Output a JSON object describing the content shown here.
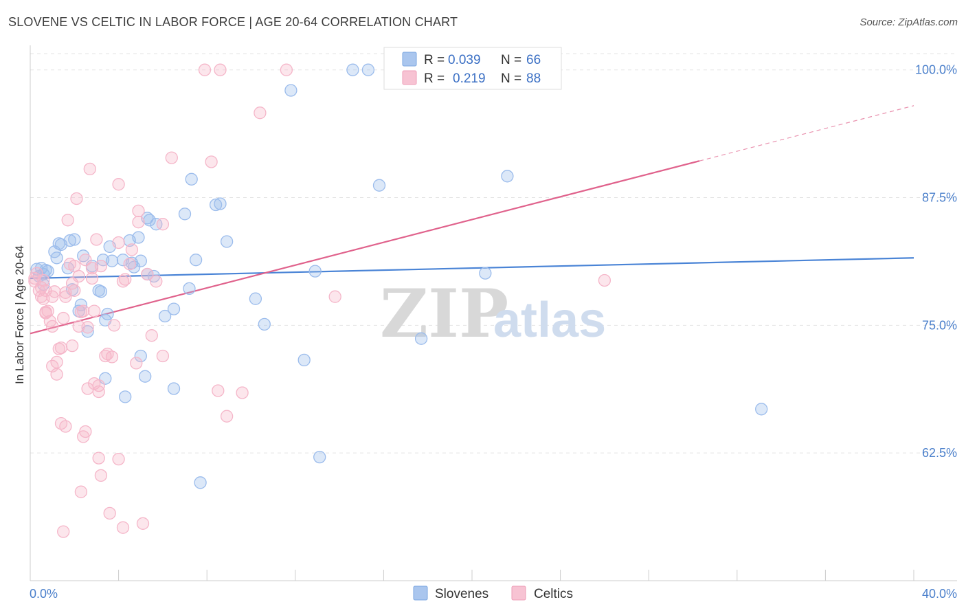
{
  "title": "SLOVENE VS CELTIC IN LABOR FORCE | AGE 20-64 CORRELATION CHART",
  "source": "Source: ZipAtlas.com",
  "watermark": {
    "zip": "ZIP",
    "atlas": "atlas"
  },
  "legend": {
    "r_label": "R =",
    "n_label": "N =",
    "series": [
      {
        "name": "Slovenes",
        "r": "0.039",
        "n": "66",
        "color": "#8fb4e8"
      },
      {
        "name": "Celtics",
        "r": "0.219",
        "n": "88",
        "color": "#f2a9c0"
      }
    ]
  },
  "bottom_legend": [
    "Slovenes",
    "Celtics"
  ],
  "chart_data": {
    "type": "scatter",
    "title": "SLOVENE VS CELTIC IN LABOR FORCE | AGE 20-64 CORRELATION CHART",
    "xlabel": "",
    "ylabel": "In Labor Force | Age 20-64",
    "xlim": [
      0,
      40
    ],
    "ylim": [
      50,
      102
    ],
    "x_tick_labels": [
      "0.0%",
      "40.0%"
    ],
    "y_ticks": [
      62.5,
      75.0,
      87.5,
      100.0
    ],
    "y_tick_labels": [
      "62.5%",
      "75.0%",
      "87.5%",
      "100.0%"
    ],
    "grid": true,
    "series": [
      {
        "name": "Slovenes",
        "color": "#4a84d6",
        "fill": "#9bbcec",
        "trend": {
          "x0": 0,
          "y0": 79.6,
          "x1": 40,
          "y1": 81.6,
          "dashed_from": null
        },
        "points": [
          [
            0.3,
            80.5
          ],
          [
            0.5,
            80.6
          ],
          [
            0.4,
            79.8
          ],
          [
            0.6,
            80.0
          ],
          [
            0.7,
            80.4
          ],
          [
            0.8,
            80.3
          ],
          [
            0.6,
            79.0
          ],
          [
            1.1,
            82.2
          ],
          [
            1.3,
            83.0
          ],
          [
            1.2,
            81.6
          ],
          [
            1.4,
            82.9
          ],
          [
            1.8,
            83.3
          ],
          [
            1.7,
            80.6
          ],
          [
            1.9,
            78.5
          ],
          [
            2.4,
            81.8
          ],
          [
            2.3,
            77.0
          ],
          [
            2.2,
            76.4
          ],
          [
            2.6,
            74.4
          ],
          [
            2.8,
            80.8
          ],
          [
            3.1,
            78.4
          ],
          [
            3.2,
            78.3
          ],
          [
            3.3,
            81.4
          ],
          [
            3.6,
            82.7
          ],
          [
            3.4,
            75.5
          ],
          [
            3.5,
            76.1
          ],
          [
            3.4,
            69.8
          ],
          [
            4.2,
            81.4
          ],
          [
            4.5,
            83.3
          ],
          [
            4.6,
            81.1
          ],
          [
            4.7,
            80.7
          ],
          [
            4.9,
            83.6
          ],
          [
            5.0,
            81.3
          ],
          [
            5.3,
            85.5
          ],
          [
            5.4,
            85.3
          ],
          [
            5.7,
            84.9
          ],
          [
            5.0,
            72.0
          ],
          [
            5.2,
            70.0
          ],
          [
            5.3,
            80.0
          ],
          [
            5.6,
            79.8
          ],
          [
            6.1,
            75.9
          ],
          [
            6.5,
            76.6
          ],
          [
            6.5,
            68.8
          ],
          [
            7.0,
            85.9
          ],
          [
            7.2,
            78.6
          ],
          [
            7.3,
            89.3
          ],
          [
            7.5,
            81.4
          ],
          [
            7.7,
            59.6
          ],
          [
            8.4,
            86.8
          ],
          [
            8.6,
            86.9
          ],
          [
            8.9,
            83.2
          ],
          [
            10.2,
            77.6
          ],
          [
            10.6,
            75.1
          ],
          [
            11.8,
            98.0
          ],
          [
            12.4,
            71.6
          ],
          [
            12.9,
            80.3
          ],
          [
            13.1,
            62.1
          ],
          [
            14.6,
            100.0
          ],
          [
            15.3,
            100.0
          ],
          [
            15.8,
            88.7
          ],
          [
            17.7,
            73.7
          ],
          [
            20.6,
            80.1
          ],
          [
            21.6,
            89.6
          ],
          [
            33.1,
            66.8
          ],
          [
            4.3,
            68.0
          ],
          [
            2.0,
            83.4
          ],
          [
            3.7,
            81.3
          ]
        ]
      },
      {
        "name": "Celtics",
        "color": "#e0628c",
        "fill": "#f5b6c9",
        "trend": {
          "x0": 0,
          "y0": 74.2,
          "x1": 40,
          "y1": 96.5,
          "dashed_from": 30.3
        },
        "points": [
          [
            0.2,
            79.3
          ],
          [
            0.3,
            80.1
          ],
          [
            0.2,
            79.6
          ],
          [
            0.4,
            78.4
          ],
          [
            0.5,
            77.8
          ],
          [
            0.5,
            78.7
          ],
          [
            0.6,
            79.4
          ],
          [
            0.7,
            78.4
          ],
          [
            0.6,
            77.6
          ],
          [
            0.7,
            76.3
          ],
          [
            0.8,
            76.4
          ],
          [
            0.9,
            75.4
          ],
          [
            1.0,
            74.9
          ],
          [
            1.0,
            77.8
          ],
          [
            1.1,
            78.3
          ],
          [
            1.2,
            71.4
          ],
          [
            1.2,
            70.2
          ],
          [
            1.0,
            71.0
          ],
          [
            1.3,
            72.7
          ],
          [
            1.4,
            72.8
          ],
          [
            1.5,
            75.7
          ],
          [
            1.6,
            78.2
          ],
          [
            1.6,
            77.8
          ],
          [
            1.7,
            85.3
          ],
          [
            1.8,
            81.0
          ],
          [
            1.9,
            73.0
          ],
          [
            2.0,
            78.4
          ],
          [
            1.9,
            79.1
          ],
          [
            2.0,
            80.8
          ],
          [
            2.1,
            87.4
          ],
          [
            2.2,
            79.8
          ],
          [
            2.2,
            74.9
          ],
          [
            2.3,
            76.3
          ],
          [
            2.4,
            76.4
          ],
          [
            2.5,
            81.4
          ],
          [
            2.6,
            74.8
          ],
          [
            2.8,
            80.6
          ],
          [
            2.8,
            79.6
          ],
          [
            2.9,
            76.4
          ],
          [
            2.9,
            69.3
          ],
          [
            3.0,
            83.4
          ],
          [
            3.2,
            80.8
          ],
          [
            2.7,
            90.3
          ],
          [
            3.4,
            72.0
          ],
          [
            3.5,
            72.2
          ],
          [
            3.7,
            71.9
          ],
          [
            3.8,
            75.0
          ],
          [
            4.0,
            83.1
          ],
          [
            4.0,
            88.8
          ],
          [
            4.2,
            79.3
          ],
          [
            4.3,
            79.5
          ],
          [
            4.5,
            81.0
          ],
          [
            4.6,
            82.4
          ],
          [
            4.8,
            71.3
          ],
          [
            4.9,
            86.2
          ],
          [
            4.9,
            85.1
          ],
          [
            5.3,
            80.0
          ],
          [
            5.5,
            74.0
          ],
          [
            5.7,
            79.3
          ],
          [
            6.0,
            72.0
          ],
          [
            6.4,
            91.4
          ],
          [
            6.0,
            84.9
          ],
          [
            8.2,
            91.0
          ],
          [
            7.9,
            100.0
          ],
          [
            8.6,
            100.0
          ],
          [
            11.6,
            100.0
          ],
          [
            10.4,
            95.8
          ],
          [
            13.8,
            77.8
          ],
          [
            8.5,
            68.6
          ],
          [
            8.9,
            66.1
          ],
          [
            9.6,
            68.4
          ],
          [
            1.4,
            65.4
          ],
          [
            1.6,
            65.1
          ],
          [
            2.4,
            64.1
          ],
          [
            2.5,
            64.6
          ],
          [
            3.1,
            69.1
          ],
          [
            3.1,
            68.5
          ],
          [
            2.6,
            68.8
          ],
          [
            3.1,
            62.0
          ],
          [
            4.0,
            61.9
          ],
          [
            3.2,
            60.3
          ],
          [
            2.3,
            58.7
          ],
          [
            3.6,
            56.6
          ],
          [
            4.2,
            55.2
          ],
          [
            5.1,
            55.6
          ],
          [
            1.5,
            54.8
          ],
          [
            26.0,
            79.4
          ],
          [
            0.7,
            76.2
          ]
        ]
      }
    ]
  }
}
